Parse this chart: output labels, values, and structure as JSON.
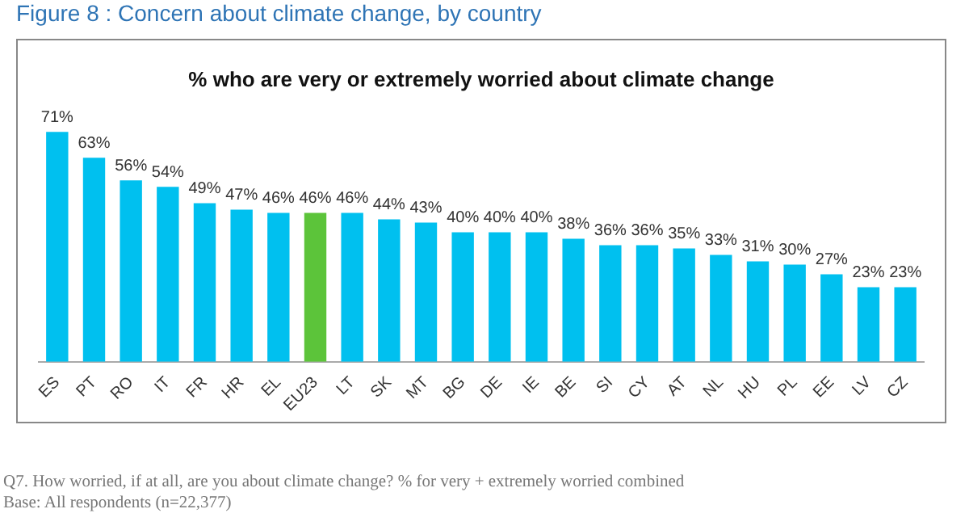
{
  "chart_data": {
    "type": "bar",
    "title": "Figure 8 : Concern about climate change, by country",
    "subtitle": "% who are very or extremely worried about climate change",
    "categories": [
      "ES",
      "PT",
      "RO",
      "IT",
      "FR",
      "HR",
      "EL",
      "EU23",
      "LT",
      "SK",
      "MT",
      "BG",
      "DE",
      "IE",
      "BE",
      "SI",
      "CY",
      "AT",
      "NL",
      "HU",
      "PL",
      "EE",
      "LV",
      "CZ"
    ],
    "values": [
      71,
      63,
      56,
      54,
      49,
      47,
      46,
      46,
      46,
      44,
      43,
      40,
      40,
      40,
      38,
      36,
      36,
      35,
      33,
      31,
      30,
      27,
      23,
      23
    ],
    "colors": [
      "#00c0ef",
      "#00c0ef",
      "#00c0ef",
      "#00c0ef",
      "#00c0ef",
      "#00c0ef",
      "#00c0ef",
      "#5cc43a",
      "#00c0ef",
      "#00c0ef",
      "#00c0ef",
      "#00c0ef",
      "#00c0ef",
      "#00c0ef",
      "#00c0ef",
      "#00c0ef",
      "#00c0ef",
      "#00c0ef",
      "#00c0ef",
      "#00c0ef",
      "#00c0ef",
      "#00c0ef",
      "#00c0ef",
      "#00c0ef"
    ],
    "value_labels": [
      "71%",
      "63%",
      "56%",
      "54%",
      "49%",
      "47%",
      "46%",
      "46%",
      "46%",
      "44%",
      "43%",
      "40%",
      "40%",
      "40%",
      "38%",
      "36%",
      "36%",
      "35%",
      "33%",
      "31%",
      "30%",
      "27%",
      "23%",
      "23%"
    ],
    "grid": false,
    "legend": false,
    "annotations": [
      "Q7. How worried, if at all, are you about climate change? % for very + extremely worried combined",
      "Base: All respondents (n=22,377)"
    ]
  }
}
